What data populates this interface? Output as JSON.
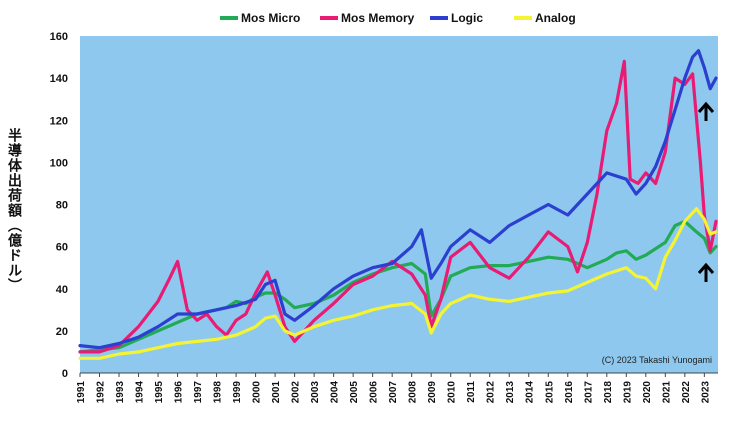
{
  "chart_data": {
    "type": "line",
    "ylabel": "半導体出荷額（億ドル）",
    "ylim": [
      0,
      160
    ],
    "yticks": [
      0,
      20,
      40,
      60,
      80,
      100,
      120,
      140,
      160
    ],
    "xlim": [
      1991,
      2023.7
    ],
    "xticks": [
      "1991",
      "1992",
      "1993",
      "1994",
      "1995",
      "1996",
      "1997",
      "1998",
      "1999",
      "2000",
      "2001",
      "2002",
      "2003",
      "2004",
      "2005",
      "2006",
      "2007",
      "2008",
      "2009",
      "2010",
      "2011",
      "2012",
      "2013",
      "2014",
      "2015",
      "2016",
      "2017",
      "2018",
      "2019",
      "2020",
      "2021",
      "2022",
      "2023"
    ],
    "grid": false,
    "legend": "top",
    "background": "#8ec8ee",
    "credit": "(C)  2023 Takashi Yunogami",
    "series": [
      {
        "name": "Mos Micro",
        "color": "#22aa55",
        "x": [
          1991,
          1992,
          1993,
          1994,
          1995,
          1996,
          1997,
          1998,
          1998.5,
          1999,
          1999.5,
          2000,
          2000.5,
          2001,
          2001.5,
          2002,
          2003,
          2004,
          2005,
          2006,
          2007,
          2008,
          2008.7,
          2009,
          2009.5,
          2010,
          2011,
          2012,
          2013,
          2014,
          2015,
          2016,
          2017,
          2018,
          2018.5,
          2019,
          2019.5,
          2020,
          2021,
          2021.5,
          2022,
          2022.6,
          2023,
          2023.3,
          2023.6
        ],
        "y": [
          10,
          11,
          12,
          16,
          20,
          24,
          28,
          30,
          31,
          34,
          33,
          36,
          38,
          38,
          35,
          31,
          33,
          37,
          43,
          47,
          50,
          52,
          47,
          27,
          35,
          46,
          50,
          51,
          51,
          53,
          55,
          54,
          50,
          54,
          57,
          58,
          54,
          56,
          62,
          70,
          72,
          67,
          64,
          57,
          60
        ]
      },
      {
        "name": "Mos Memory",
        "color": "#e81c74",
        "x": [
          1991,
          1992,
          1993,
          1994,
          1995,
          1995.6,
          1996,
          1996.5,
          1997,
          1997.5,
          1998,
          1998.5,
          1999,
          1999.5,
          2000,
          2000.6,
          2001,
          2001.5,
          2002,
          2003,
          2004,
          2005,
          2006,
          2007,
          2008,
          2008.7,
          2009,
          2009.5,
          2010,
          2011,
          2012,
          2013,
          2014,
          2015,
          2016,
          2016.5,
          2017,
          2017.5,
          2018,
          2018.5,
          2018.9,
          2019.2,
          2019.6,
          2020,
          2020.5,
          2021,
          2021.5,
          2022,
          2022.4,
          2022.8,
          2023,
          2023.3,
          2023.6
        ],
        "y": [
          10,
          10,
          13,
          22,
          34,
          45,
          53,
          30,
          25,
          28,
          22,
          18,
          25,
          28,
          38,
          48,
          37,
          22,
          15,
          25,
          33,
          42,
          46,
          53,
          47,
          37,
          22,
          35,
          55,
          62,
          50,
          45,
          55,
          67,
          60,
          48,
          62,
          85,
          115,
          128,
          148,
          92,
          90,
          95,
          90,
          105,
          140,
          137,
          142,
          100,
          75,
          58,
          72
        ]
      },
      {
        "name": "Logic",
        "color": "#2b3fd0",
        "x": [
          1991,
          1992,
          1993,
          1994,
          1995,
          1996,
          1997,
          1998,
          1999,
          2000,
          2000.5,
          2001,
          2001.5,
          2002,
          2003,
          2004,
          2005,
          2006,
          2007,
          2008,
          2008.5,
          2009,
          2009.5,
          2010,
          2011,
          2012,
          2013,
          2014,
          2015,
          2016,
          2017,
          2018,
          2019,
          2019.5,
          2020,
          2020.5,
          2021,
          2021.5,
          2022,
          2022.4,
          2022.7,
          2023,
          2023.3,
          2023.6
        ],
        "y": [
          13,
          12,
          14,
          17,
          22,
          28,
          28,
          30,
          32,
          35,
          42,
          44,
          28,
          25,
          32,
          40,
          46,
          50,
          52,
          60,
          68,
          45,
          52,
          60,
          68,
          62,
          70,
          75,
          80,
          75,
          85,
          95,
          92,
          85,
          90,
          98,
          110,
          125,
          140,
          150,
          153,
          145,
          135,
          140
        ]
      },
      {
        "name": "Analog",
        "color": "#f4f432",
        "x": [
          1991,
          1992,
          1993,
          1994,
          1995,
          1996,
          1997,
          1998,
          1999,
          2000,
          2000.5,
          2001,
          2001.5,
          2002,
          2003,
          2004,
          2005,
          2006,
          2007,
          2008,
          2008.7,
          2009,
          2009.5,
          2010,
          2011,
          2012,
          2013,
          2014,
          2015,
          2016,
          2017,
          2018,
          2019,
          2019.5,
          2020,
          2020.5,
          2021,
          2021.5,
          2022,
          2022.6,
          2023,
          2023.3,
          2023.6
        ],
        "y": [
          7,
          7,
          9,
          10,
          12,
          14,
          15,
          16,
          18,
          22,
          26,
          27,
          20,
          18,
          22,
          25,
          27,
          30,
          32,
          33,
          28,
          19,
          28,
          33,
          37,
          35,
          34,
          36,
          38,
          39,
          43,
          47,
          50,
          46,
          45,
          40,
          55,
          63,
          72,
          78,
          73,
          66,
          67
        ]
      }
    ]
  }
}
